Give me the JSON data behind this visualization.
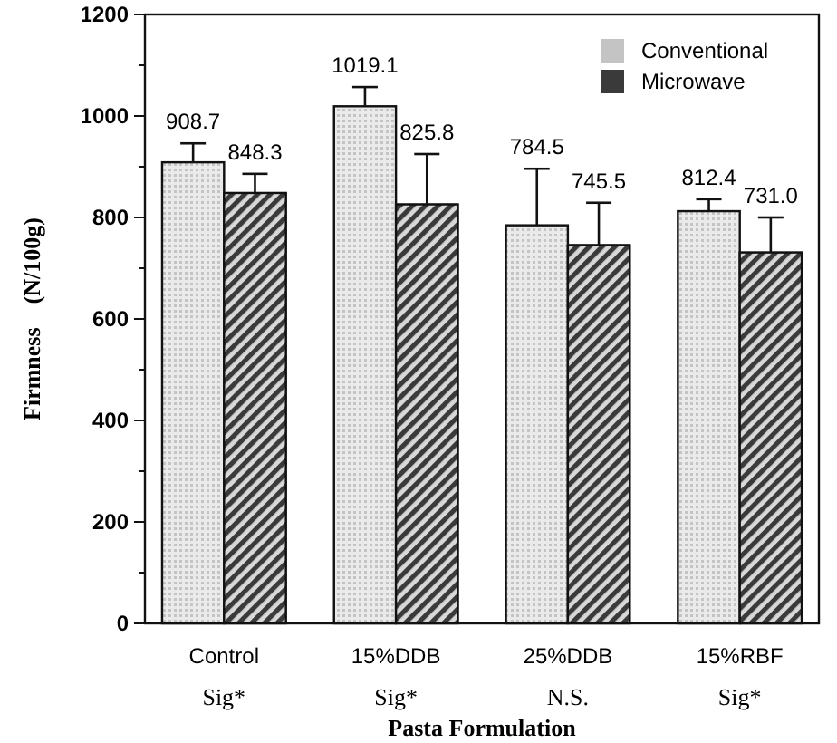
{
  "chart_data": {
    "type": "bar",
    "xlabel": "Pasta Formulation",
    "ylabel": "Firmness    (N/100g)",
    "categories": [
      "Control",
      "15%DDB",
      "25%DDB",
      "15%RBF"
    ],
    "series": [
      {
        "name": "Conventional",
        "color": "#c4c4c4",
        "values": [
          908.7,
          1019.1,
          784.5,
          812.4
        ],
        "errors": [
          [
            908.7,
            946
          ],
          [
            1019.1,
            1057
          ],
          [
            784.5,
            896
          ],
          [
            812.4,
            836
          ]
        ]
      },
      {
        "name": "Microwave",
        "color": "#3a3a3a",
        "values": [
          848.3,
          825.8,
          745.5,
          731.0
        ],
        "errors": [
          [
            848.3,
            886
          ],
          [
            825.8,
            925
          ],
          [
            745.5,
            829
          ],
          [
            731.0,
            800
          ]
        ]
      }
    ],
    "value_labels": [
      [
        "908.7",
        "1019.1",
        "784.5",
        "812.4"
      ],
      [
        "848.3",
        "825.8",
        "745.5",
        "731.0"
      ]
    ],
    "annotations": [
      "Sig*",
      "Sig*",
      "N.S.",
      "Sig*"
    ],
    "ylim": [
      0,
      1200
    ],
    "yticks": [
      0,
      {
        "value": 100,
        "label": null
      },
      200,
      {
        "value": 300,
        "label": null
      },
      400,
      {
        "value": 500,
        "label": null
      },
      600,
      {
        "value": 700,
        "label": null
      },
      800,
      {
        "value": 900,
        "label": null
      },
      1000,
      {
        "value": 1100,
        "label": null
      },
      1200
    ],
    "legend": "top right",
    "grid": false
  }
}
